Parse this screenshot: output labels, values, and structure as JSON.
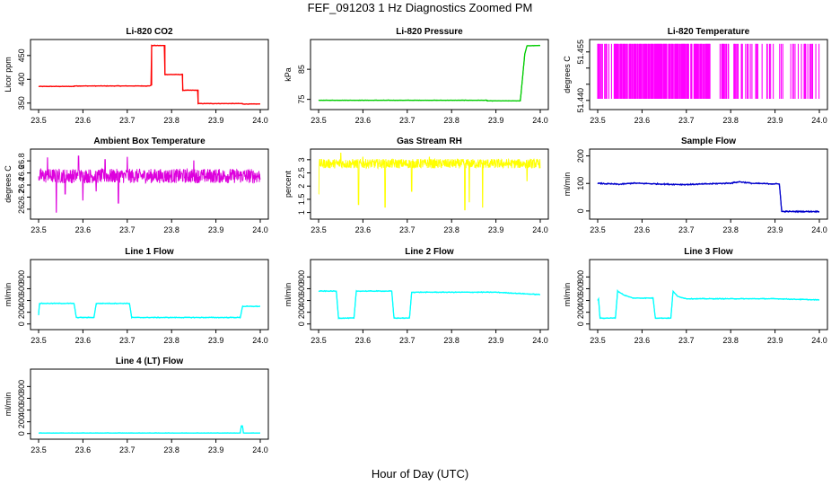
{
  "title": "FEF_091203  1 Hz Diagnostics Zoomed PM",
  "xlabel": "Hour of Day (UTC)",
  "chart_data": [
    {
      "type": "line",
      "title": "Li-820 CO2",
      "ylabel": "Licor ppm",
      "color": "#ff0000",
      "xlim": [
        23.5,
        24.0
      ],
      "ylim": [
        342,
        478
      ],
      "xticks": [
        23.5,
        23.6,
        23.7,
        23.8,
        23.9,
        24.0
      ],
      "yticks": [
        350,
        400,
        450
      ],
      "noise": 0.7,
      "x": [
        23.5,
        23.58,
        23.58,
        23.75,
        23.755,
        23.755,
        23.785,
        23.785,
        23.825,
        23.825,
        23.86,
        23.86,
        23.96,
        23.96,
        24.0
      ],
      "y": [
        385,
        385,
        386,
        386,
        388,
        471,
        471,
        410,
        410,
        377,
        377,
        349,
        349,
        348,
        348
      ]
    },
    {
      "type": "line",
      "title": "Li-820 Pressure",
      "ylabel": "kPa",
      "color": "#00cc00",
      "xlim": [
        23.5,
        24.0
      ],
      "ylim": [
        72.5,
        94
      ],
      "xticks": [
        23.5,
        23.6,
        23.7,
        23.8,
        23.9,
        24.0
      ],
      "yticks": [
        75,
        85
      ],
      "noise": 0.08,
      "x": [
        23.5,
        23.88,
        23.88,
        23.955,
        23.96,
        23.965,
        23.97,
        24.0
      ],
      "y": [
        74.7,
        74.7,
        74.5,
        74.5,
        82,
        90,
        92.8,
        92.9
      ]
    },
    {
      "type": "line",
      "title": "Li-820 Temperature",
      "ylabel": "degrees C",
      "color": "#ff00ff",
      "xlim": [
        23.5,
        24.0
      ],
      "ylim": [
        51.438,
        51.458
      ],
      "xticks": [
        23.5,
        23.6,
        23.7,
        23.8,
        23.9,
        24.0
      ],
      "yticks": [
        51.44,
        51.445,
        51.45,
        51.455
      ],
      "ytick_labels": [
        "51.440",
        "",
        "",
        "51.455"
      ],
      "pattern": "binary",
      "low": 51.4405,
      "high": 51.4575,
      "gap": [
        23.755,
        23.775
      ],
      "density": [
        [
          23.5,
          23.57,
          0.55
        ],
        [
          23.57,
          23.755,
          0.75
        ],
        [
          23.775,
          23.83,
          0.55
        ],
        [
          23.83,
          24.0,
          0.25
        ]
      ]
    },
    {
      "type": "line",
      "title": "Ambient Box Temperature",
      "ylabel": "degrees C",
      "color": "#dd00dd",
      "xlim": [
        23.5,
        24.0
      ],
      "ylim": [
        25.88,
        26.95
      ],
      "xticks": [
        23.5,
        23.6,
        23.7,
        23.8,
        23.9,
        24.0
      ],
      "yticks": [
        26.0,
        26.2,
        26.4,
        26.6,
        26.8
      ],
      "pattern": "band",
      "center": 26.55,
      "band": 0.12,
      "spikes_down": [
        [
          23.54,
          25.95
        ],
        [
          23.6,
          26.15
        ],
        [
          23.68,
          26.1
        ],
        [
          23.7,
          26.2
        ],
        [
          23.56,
          26.25
        ],
        [
          23.63,
          26.3
        ]
      ],
      "spikes_up": [
        [
          23.52,
          26.85
        ],
        [
          23.59,
          26.88
        ],
        [
          23.65,
          26.82
        ],
        [
          23.7,
          26.86
        ],
        [
          23.85,
          26.8
        ]
      ]
    },
    {
      "type": "line",
      "title": "Gas Stream RH",
      "ylabel": "percent",
      "color": "#ffff00",
      "xlim": [
        23.5,
        24.0
      ],
      "ylim": [
        0.85,
        3.3
      ],
      "xticks": [
        23.5,
        23.6,
        23.7,
        23.8,
        23.9,
        24.0
      ],
      "yticks": [
        1.0,
        1.5,
        2.0,
        2.5,
        3.0
      ],
      "pattern": "band",
      "center": 2.85,
      "band": 0.18,
      "spikes_down": [
        [
          23.5,
          1.7
        ],
        [
          23.59,
          1.3
        ],
        [
          23.65,
          1.2
        ],
        [
          23.71,
          1.8
        ],
        [
          23.83,
          1.1
        ],
        [
          23.84,
          1.4
        ],
        [
          23.87,
          1.2
        ],
        [
          23.97,
          2.2
        ]
      ],
      "spikes_up": [
        [
          23.55,
          3.25
        ],
        [
          23.6,
          3.1
        ],
        [
          23.75,
          3.1
        ]
      ]
    },
    {
      "type": "line",
      "title": "Sample Flow",
      "ylabel": "ml/min",
      "color": "#0000cc",
      "xlim": [
        23.5,
        24.0
      ],
      "ylim": [
        -20,
        215
      ],
      "xticks": [
        23.5,
        23.6,
        23.7,
        23.8,
        23.9,
        24.0
      ],
      "yticks": [
        0,
        100,
        200
      ],
      "noise": 2.5,
      "x": [
        23.5,
        23.55,
        23.58,
        23.66,
        23.7,
        23.8,
        23.82,
        23.85,
        23.91,
        23.915,
        24.0
      ],
      "y": [
        100,
        97,
        101,
        97,
        96,
        101,
        106,
        100,
        98,
        -2,
        -2
      ]
    },
    {
      "type": "line",
      "title": "Line 1 Flow",
      "ylabel": "ml/min",
      "color": "#00ffff",
      "xlim": [
        23.5,
        24.0
      ],
      "ylim": [
        -50,
        1050
      ],
      "xticks": [
        23.5,
        23.6,
        23.7,
        23.8,
        23.9,
        24.0
      ],
      "yticks": [
        0,
        200,
        400,
        600,
        800
      ],
      "noise": 8,
      "x": [
        23.5,
        23.502,
        23.58,
        23.585,
        23.625,
        23.63,
        23.705,
        23.71,
        23.955,
        23.96,
        24.0
      ],
      "y": [
        150,
        350,
        350,
        110,
        110,
        350,
        350,
        110,
        110,
        300,
        300
      ]
    },
    {
      "type": "line",
      "title": "Line 2 Flow",
      "ylabel": "ml/min",
      "color": "#00ffff",
      "xlim": [
        23.5,
        24.0
      ],
      "ylim": [
        -50,
        1050
      ],
      "xticks": [
        23.5,
        23.6,
        23.7,
        23.8,
        23.9,
        24.0
      ],
      "yticks": [
        0,
        200,
        400,
        600,
        800
      ],
      "noise": 8,
      "x": [
        23.5,
        23.54,
        23.545,
        23.58,
        23.585,
        23.665,
        23.67,
        23.705,
        23.71,
        23.9,
        23.95,
        24.0
      ],
      "y": [
        560,
        560,
        100,
        100,
        560,
        560,
        100,
        100,
        540,
        540,
        520,
        500
      ]
    },
    {
      "type": "line",
      "title": "Line 3 Flow",
      "ylabel": "ml/min",
      "color": "#00ffff",
      "xlim": [
        23.5,
        24.0
      ],
      "ylim": [
        -50,
        1050
      ],
      "xticks": [
        23.5,
        23.6,
        23.7,
        23.8,
        23.9,
        24.0
      ],
      "yticks": [
        0,
        200,
        400,
        600,
        800
      ],
      "noise": 8,
      "x": [
        23.5,
        23.502,
        23.505,
        23.54,
        23.545,
        23.56,
        23.58,
        23.625,
        23.63,
        23.665,
        23.67,
        23.68,
        23.7,
        23.9,
        24.0
      ],
      "y": [
        400,
        430,
        100,
        100,
        560,
        490,
        440,
        440,
        100,
        100,
        560,
        470,
        430,
        430,
        410
      ]
    },
    {
      "type": "line",
      "title": "Line 4 (LT) Flow",
      "ylabel": "ml/min",
      "color": "#00ffff",
      "xlim": [
        23.5,
        24.0
      ],
      "ylim": [
        -50,
        1050
      ],
      "xticks": [
        23.5,
        23.6,
        23.7,
        23.8,
        23.9,
        24.0
      ],
      "yticks": [
        0,
        200,
        400,
        600,
        800
      ],
      "noise": 3,
      "x": [
        23.5,
        23.955,
        23.957,
        23.96,
        23.962,
        24.0
      ],
      "y": [
        10,
        10,
        130,
        130,
        10,
        10
      ]
    }
  ]
}
